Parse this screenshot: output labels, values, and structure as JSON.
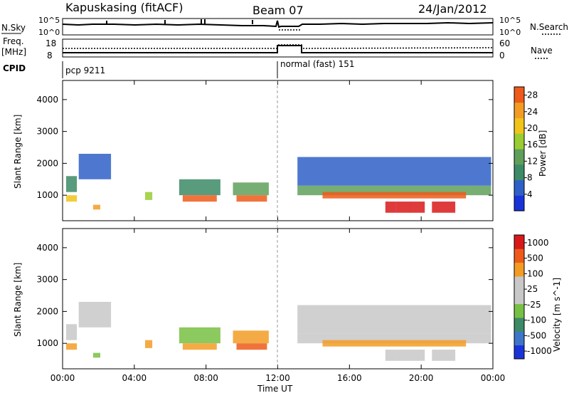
{
  "header": {
    "station": "Kapuskasing (fitACF)",
    "beam": "Beam 07",
    "date": "24/Jan/2012"
  },
  "strips": {
    "nsky_label": "N.Sky",
    "nsky_ticks": [
      "10^5",
      "10^0"
    ],
    "nsearch_label": "N.Search",
    "nsearch_ticks": [
      "10^5",
      "10^0"
    ],
    "freq_label_1": "Freq.",
    "freq_label_2": "[MHz]",
    "freq_ticks": [
      "18",
      "8"
    ],
    "nave_label": "Nave",
    "nave_ticks": [
      "60",
      "0"
    ],
    "cpid_label": "CPID",
    "cpid_segments": [
      {
        "text": "pcp 9211",
        "start_hour": 0
      },
      {
        "text": "normal (fast) 151",
        "start_hour": 12
      }
    ]
  },
  "colors": {
    "power": [
      "#1a33d9",
      "#2f60c8",
      "#3c8a66",
      "#5ea05a",
      "#9acd32",
      "#f0c419",
      "#f39c24",
      "#ee5a1a",
      "#d91919"
    ],
    "velocity": [
      "#1a33d9",
      "#3d75c9",
      "#3c8a66",
      "#78c043",
      "#c8c8c8",
      "#c8c8c8",
      "#f39c24",
      "#ee5a1a",
      "#d91919"
    ]
  },
  "chart_data": [
    {
      "type": "heatmap",
      "title": "",
      "xlabel": "Time UT",
      "ylabel": "Slant Range [km]",
      "xlim": [
        0,
        24
      ],
      "ylim": [
        200,
        4600
      ],
      "x_ticks": [
        "00:00",
        "04:00",
        "08:00",
        "12:00",
        "16:00",
        "20:00",
        "00:00"
      ],
      "y_ticks": [
        "1000",
        "2000",
        "3000",
        "4000"
      ],
      "colorbar": {
        "label": "Power [dB]",
        "ticks": [
          "4",
          "8",
          "12",
          "16",
          "20",
          "24",
          "28"
        ],
        "range": [
          0,
          30
        ]
      },
      "patches": [
        {
          "t0": 0.2,
          "t1": 0.8,
          "r0": 1100,
          "r1": 1600,
          "level": 2
        },
        {
          "t0": 0.2,
          "t1": 0.8,
          "r0": 800,
          "r1": 1000,
          "level": 5
        },
        {
          "t0": 0.9,
          "t1": 2.7,
          "r0": 1500,
          "r1": 2300,
          "level": 1
        },
        {
          "t0": 1.7,
          "t1": 2.1,
          "r0": 550,
          "r1": 700,
          "level": 6
        },
        {
          "t0": 4.6,
          "t1": 5.0,
          "r0": 850,
          "r1": 1100,
          "level": 4
        },
        {
          "t0": 6.5,
          "t1": 8.8,
          "r0": 1000,
          "r1": 1500,
          "level": 2
        },
        {
          "t0": 6.7,
          "t1": 8.6,
          "r0": 800,
          "r1": 1000,
          "level": 7
        },
        {
          "t0": 9.5,
          "t1": 11.5,
          "r0": 1000,
          "r1": 1400,
          "level": 3
        },
        {
          "t0": 9.7,
          "t1": 11.4,
          "r0": 800,
          "r1": 1000,
          "level": 7
        },
        {
          "t0": 13.1,
          "t1": 23.9,
          "r0": 1300,
          "r1": 2200,
          "level": 1
        },
        {
          "t0": 13.1,
          "t1": 23.9,
          "r0": 1000,
          "r1": 1300,
          "level": 3
        },
        {
          "t0": 14.5,
          "t1": 22.5,
          "r0": 900,
          "r1": 1100,
          "level": 7
        },
        {
          "t0": 18.0,
          "t1": 18.6,
          "r0": 450,
          "r1": 800,
          "level": 8
        },
        {
          "t0": 18.6,
          "t1": 19.4,
          "r0": 450,
          "r1": 800,
          "level": 8
        },
        {
          "t0": 19.4,
          "t1": 20.2,
          "r0": 450,
          "r1": 800,
          "level": 8
        },
        {
          "t0": 20.6,
          "t1": 21.9,
          "r0": 450,
          "r1": 800,
          "level": 8
        }
      ]
    },
    {
      "type": "heatmap",
      "title": "",
      "xlabel": "Time UT",
      "ylabel": "Slant Range [km]",
      "xlim": [
        0,
        24
      ],
      "ylim": [
        200,
        4600
      ],
      "x_ticks": [
        "00:00",
        "04:00",
        "08:00",
        "12:00",
        "16:00",
        "20:00",
        "00:00"
      ],
      "y_ticks": [
        "1000",
        "2000",
        "3000",
        "4000"
      ],
      "colorbar": {
        "label": "Velocity [m s^-1]",
        "ticks": [
          "1000",
          "500",
          "100",
          "25",
          "-25",
          "-100",
          "-500",
          "-1000"
        ],
        "range": [
          -1000,
          1000
        ]
      },
      "patches": [
        {
          "t0": 0.2,
          "t1": 0.8,
          "r0": 1100,
          "r1": 1600,
          "level": 4
        },
        {
          "t0": 0.2,
          "t1": 0.8,
          "r0": 800,
          "r1": 1000,
          "level": 6
        },
        {
          "t0": 0.9,
          "t1": 2.7,
          "r0": 1500,
          "r1": 2300,
          "level": 4
        },
        {
          "t0": 1.7,
          "t1": 2.1,
          "r0": 550,
          "r1": 700,
          "level": 3
        },
        {
          "t0": 4.6,
          "t1": 5.0,
          "r0": 850,
          "r1": 1100,
          "level": 6
        },
        {
          "t0": 6.5,
          "t1": 8.8,
          "r0": 1000,
          "r1": 1500,
          "level": 3
        },
        {
          "t0": 6.7,
          "t1": 8.6,
          "r0": 800,
          "r1": 1000,
          "level": 6
        },
        {
          "t0": 9.5,
          "t1": 11.5,
          "r0": 1000,
          "r1": 1400,
          "level": 6
        },
        {
          "t0": 9.7,
          "t1": 11.4,
          "r0": 800,
          "r1": 1000,
          "level": 7
        },
        {
          "t0": 13.1,
          "t1": 23.9,
          "r0": 1300,
          "r1": 2200,
          "level": 4
        },
        {
          "t0": 13.1,
          "t1": 23.9,
          "r0": 1000,
          "r1": 1300,
          "level": 4
        },
        {
          "t0": 14.5,
          "t1": 22.5,
          "r0": 900,
          "r1": 1100,
          "level": 6
        },
        {
          "t0": 18.0,
          "t1": 18.6,
          "r0": 450,
          "r1": 800,
          "level": 4
        },
        {
          "t0": 18.6,
          "t1": 19.4,
          "r0": 450,
          "r1": 800,
          "level": 4
        },
        {
          "t0": 19.4,
          "t1": 20.2,
          "r0": 450,
          "r1": 800,
          "level": 4
        },
        {
          "t0": 20.6,
          "t1": 21.9,
          "r0": 450,
          "r1": 800,
          "level": 4
        }
      ]
    }
  ]
}
